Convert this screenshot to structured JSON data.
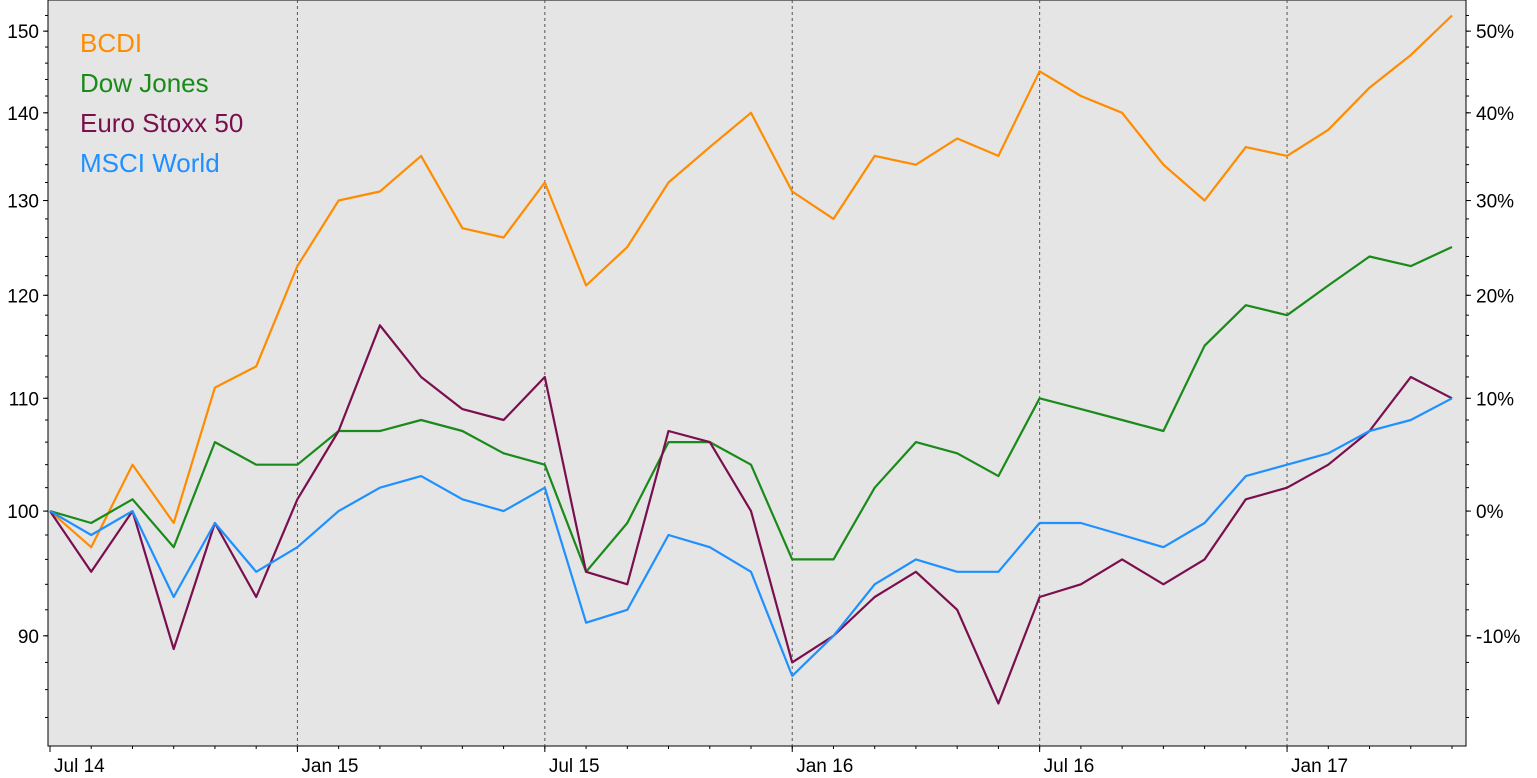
{
  "chart_data": {
    "type": "line",
    "title": "",
    "xlabel": "",
    "ylabel": "",
    "ylim": [
      82,
      154
    ],
    "log_scale": true,
    "grid": "vertical dashed lines at x tick positions",
    "legend_placement": "top-left",
    "background_color": "#e5e5e5",
    "x_tick_labels": [
      "Jul 14",
      "Jan 15",
      "Jul 15",
      "Jan 16",
      "Jul 16",
      "Jan 17"
    ],
    "y_left_ticks": [
      90,
      100,
      110,
      120,
      130,
      140,
      150
    ],
    "y_left_tick_labels": [
      "90",
      "100",
      "110",
      "120",
      "130",
      "140",
      "150"
    ],
    "y_right_ticks": [
      90,
      100,
      110,
      120,
      130,
      140,
      150
    ],
    "y_right_tick_labels": [
      "-10%",
      "0%",
      "10%",
      "20%",
      "30%",
      "40%",
      "50%"
    ],
    "x": [
      "2014-07",
      "2014-08",
      "2014-09",
      "2014-10",
      "2014-11",
      "2014-12",
      "2015-01",
      "2015-02",
      "2015-03",
      "2015-04",
      "2015-05",
      "2015-06",
      "2015-07",
      "2015-08",
      "2015-09",
      "2015-10",
      "2015-11",
      "2015-12",
      "2016-01",
      "2016-02",
      "2016-03",
      "2016-04",
      "2016-05",
      "2016-06",
      "2016-07",
      "2016-08",
      "2016-09",
      "2016-10",
      "2016-11",
      "2016-12",
      "2017-01",
      "2017-02",
      "2017-03",
      "2017-04",
      "2017-05"
    ],
    "series": [
      {
        "name": "BCDI",
        "color": "#ff8c00",
        "values": [
          100,
          97,
          104,
          99,
          111,
          113,
          123,
          130,
          131,
          135,
          127,
          126,
          132,
          121,
          125,
          132,
          136,
          140,
          131,
          128,
          135,
          134,
          137,
          135,
          145,
          142,
          140,
          134,
          130,
          136,
          135,
          138,
          143,
          147,
          152
        ]
      },
      {
        "name": "Dow Jones",
        "color": "#1a8a1a",
        "values": [
          100,
          99,
          101,
          97,
          106,
          104,
          104,
          107,
          107,
          108,
          107,
          105,
          104,
          95,
          99,
          106,
          106,
          104,
          96,
          96,
          102,
          106,
          105,
          103,
          110,
          109,
          108,
          107,
          115,
          119,
          118,
          121,
          124,
          123,
          125
        ]
      },
      {
        "name": "Euro Stoxx 50",
        "color": "#7a0f4f",
        "values": [
          100,
          95,
          100,
          89,
          99,
          93,
          101,
          107,
          117,
          112,
          109,
          108,
          112,
          95,
          94,
          107,
          106,
          100,
          88,
          90,
          93,
          95,
          92,
          85,
          93,
          94,
          96,
          94,
          96,
          101,
          102,
          104,
          107,
          112,
          110
        ]
      },
      {
        "name": "MSCI World",
        "color": "#1e90ff",
        "values": [
          100,
          98,
          100,
          93,
          99,
          95,
          97,
          100,
          102,
          103,
          101,
          100,
          102,
          91,
          92,
          98,
          97,
          95,
          87,
          90,
          94,
          96,
          95,
          95,
          99,
          99,
          98,
          97,
          99,
          103,
          104,
          105,
          107,
          108,
          110
        ]
      }
    ]
  }
}
